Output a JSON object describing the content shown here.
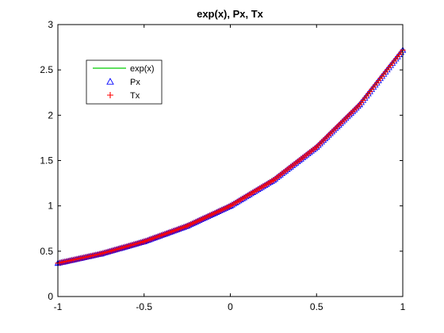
{
  "chart_data": {
    "type": "line",
    "title": "exp(x), Px, Tx",
    "xlabel": "",
    "ylabel": "",
    "xlim": [
      -1,
      1
    ],
    "ylim": [
      0,
      3
    ],
    "xticks": [
      "-1",
      "-0.5",
      "0",
      "0.5",
      "1"
    ],
    "yticks": [
      "0",
      "0.5",
      "1",
      "1.5",
      "2",
      "2.5",
      "3"
    ],
    "grid": false,
    "legend": {
      "placement": "top-left",
      "entries": [
        {
          "label": "exp(x)",
          "marker": "line",
          "color": "#00cc00"
        },
        {
          "label": "Px",
          "marker": "triangle",
          "color": "#0000ff"
        },
        {
          "label": "Tx",
          "marker": "plus",
          "color": "#ff0000"
        }
      ]
    },
    "series": [
      {
        "name": "exp(x)",
        "style": "line",
        "color": "#00cc00",
        "x": [
          -1,
          -0.75,
          -0.5,
          -0.25,
          0,
          0.25,
          0.5,
          0.75,
          1
        ],
        "values": [
          0.368,
          0.472,
          0.607,
          0.779,
          1.0,
          1.284,
          1.649,
          2.117,
          2.718
        ]
      },
      {
        "name": "Px",
        "style": "triangle",
        "color": "#0000ff",
        "x": [
          -1,
          -0.75,
          -0.5,
          -0.25,
          0,
          0.25,
          0.5,
          0.75,
          1
        ],
        "values": [
          0.368,
          0.472,
          0.607,
          0.779,
          1.0,
          1.284,
          1.649,
          2.117,
          2.718
        ]
      },
      {
        "name": "Tx",
        "style": "plus",
        "color": "#ff0000",
        "x": [
          -1,
          -0.75,
          -0.5,
          -0.25,
          0,
          0.25,
          0.5,
          0.75,
          1
        ],
        "values": [
          0.368,
          0.472,
          0.607,
          0.779,
          1.0,
          1.284,
          1.649,
          2.117,
          2.718
        ]
      }
    ]
  }
}
